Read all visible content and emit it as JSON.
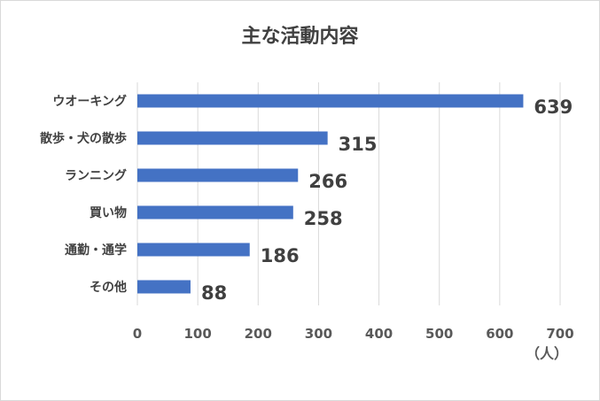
{
  "chart_data": {
    "type": "bar",
    "orientation": "horizontal",
    "title": "主な活動内容",
    "unit_label": "（人）",
    "categories": [
      "ウオーキング",
      "散歩・犬の散歩",
      "ランニング",
      "買い物",
      "通勤・通学",
      "その他"
    ],
    "values": [
      639,
      315,
      266,
      258,
      186,
      88
    ],
    "xlim": [
      0,
      700
    ],
    "xticks": [
      0,
      100,
      200,
      300,
      400,
      500,
      600,
      700
    ],
    "grid": "vertical",
    "bar_color": "#4472c4"
  }
}
